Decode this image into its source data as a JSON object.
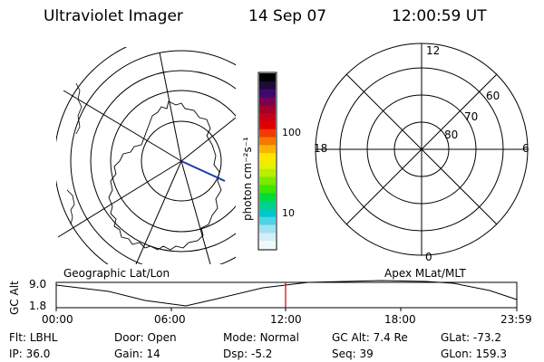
{
  "header": {
    "instrument": "Ultraviolet Imager",
    "date": "14 Sep 07",
    "time": "12:00:59 UT"
  },
  "left_panel": {
    "caption": "Geographic Lat/Lon"
  },
  "right_panel": {
    "caption": "Apex MLat/MLT",
    "mlt_labels": {
      "top": "12",
      "left": "18",
      "right": "6",
      "bottom": "0"
    },
    "lat_labels": [
      "60",
      "70",
      "80"
    ]
  },
  "colorbar": {
    "unit_label": "photon cm⁻²s⁻¹",
    "tick_100": "100",
    "tick_10": "10",
    "colors": [
      "#000000",
      "#1e0a3c",
      "#3c0a6e",
      "#7a0050",
      "#a0002a",
      "#c80014",
      "#e10000",
      "#f03c00",
      "#f57800",
      "#fab400",
      "#ffe600",
      "#e6f000",
      "#b4f000",
      "#78eb00",
      "#3ce600",
      "#00dc3c",
      "#00d28c",
      "#00c8c8",
      "#50d2e6",
      "#a0e1f0",
      "#d2eef8",
      "#f0f8fc"
    ]
  },
  "altitude_plot": {
    "ylabel": "GC Alt",
    "y_max": "9.0",
    "y_min": "1.8",
    "x_ticks": [
      "00:00",
      "06:00",
      "12:00",
      "18:00",
      "23:59"
    ],
    "cursor_time": "12:00",
    "marker_color": "#c80000"
  },
  "status": {
    "row1": [
      {
        "label": "Flt:",
        "value": "LBHL"
      },
      {
        "label": "Door:",
        "value": "Open"
      },
      {
        "label": "Mode:",
        "value": "Normal"
      },
      {
        "label": "GC Alt:",
        "value": "7.4 Re"
      },
      {
        "label": "GLat:",
        "value": "-73.2"
      }
    ],
    "row2": [
      {
        "label": "IP:",
        "value": "36.0"
      },
      {
        "label": "Gain:",
        "value": "14"
      },
      {
        "label": "Dsp:",
        "value": "-5.2"
      },
      {
        "label": "Seq:",
        "value": "39"
      },
      {
        "label": "GLon:",
        "value": "159.3"
      }
    ]
  }
}
